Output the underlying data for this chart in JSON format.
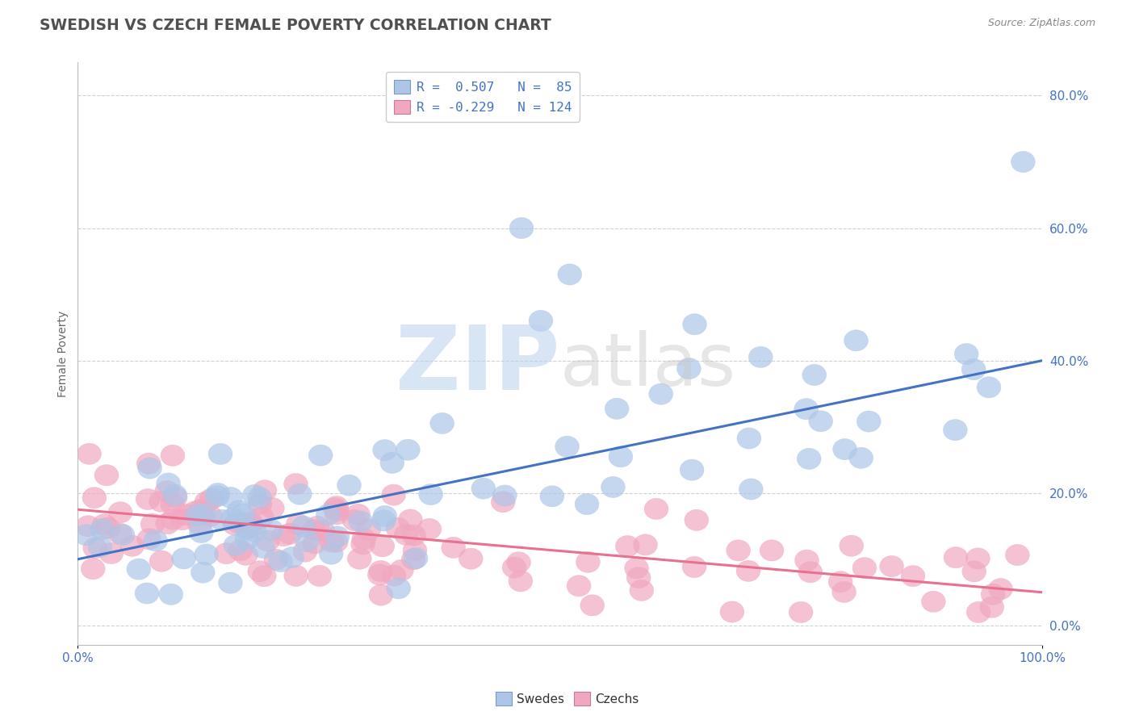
{
  "title": "SWEDISH VS CZECH FEMALE POVERTY CORRELATION CHART",
  "source": "Source: ZipAtlas.com",
  "ylabel": "Female Poverty",
  "xlim": [
    0,
    100
  ],
  "ylim": [
    -3,
    85
  ],
  "yticks": [
    0,
    20,
    40,
    60,
    80
  ],
  "swedes_R": 0.507,
  "swedes_N": 85,
  "czechs_R": -0.229,
  "czechs_N": 124,
  "swedes_color": "#adc6e8",
  "czechs_color": "#f0a8c0",
  "swedes_line_color": "#4472c4",
  "czechs_line_color": "#e87090",
  "background_color": "#ffffff",
  "grid_color": "#cccccc",
  "title_color": "#505050",
  "axis_label_color": "#4472c4",
  "watermark_zip_color": "#b8d0ee",
  "watermark_atlas_color": "#c8c8c8",
  "swedes_line_start_y": 10.0,
  "swedes_line_end_y": 40.0,
  "czechs_line_start_y": 17.5,
  "czechs_line_end_y": 5.0
}
